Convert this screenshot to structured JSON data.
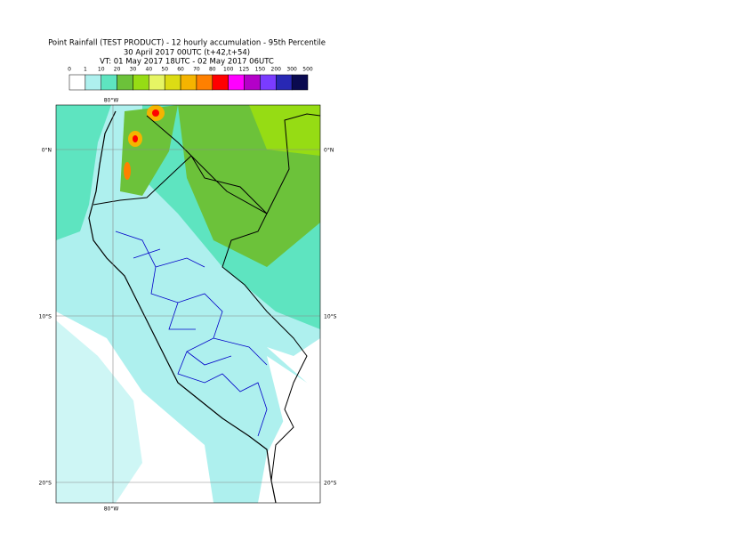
{
  "title": [
    "Point Rainfall (TEST PRODUCT) - 12 hourly accumulation - 95th Percentile",
    "30 April 2017 00UTC (t+42,t+54)",
    "VT: 01 May 2017 18UTC - 02 May 2017 06UTC"
  ],
  "legend": {
    "ticks": [
      "0",
      "1",
      "10",
      "20",
      "30",
      "40",
      "50",
      "60",
      "70",
      "80",
      "100",
      "125",
      "150",
      "200",
      "300",
      "500"
    ],
    "colors": [
      "#ffffff",
      "#aef0ee",
      "#5ee4c0",
      "#6cc23a",
      "#96dc14",
      "#e6f564",
      "#dcdc14",
      "#f5b400",
      "#ff8000",
      "#ff0000",
      "#ff00ff",
      "#b400c8",
      "#7a3cff",
      "#2828b4",
      "#0a0a50"
    ]
  },
  "map": {
    "lon_labels": [
      "80°W"
    ],
    "lat_labels": [
      "0°N",
      "10°S",
      "20°S"
    ]
  }
}
